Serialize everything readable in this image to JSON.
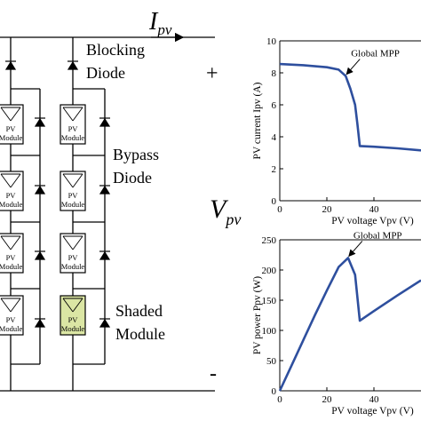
{
  "circuit": {
    "current_symbol": "I",
    "current_sub": "pv",
    "voltage_symbol": "V",
    "voltage_sub": "pv",
    "plus": "+",
    "minus": "-",
    "label_blocking_1": "Blocking",
    "label_blocking_2": "Diode",
    "label_bypass_1": "Bypass",
    "label_bypass_2": "Diode",
    "label_shaded_1": "Shaded",
    "label_shaded_2": "Module",
    "module_line1": "PV",
    "module_line2": "Module",
    "colors": {
      "shaded_fill": "#dbe6a4",
      "wire": "#000000"
    }
  },
  "chart_data": [
    {
      "type": "line",
      "title": "",
      "xlabel": "PV voltage Vpv (V)",
      "ylabel": "PV current Ipv (A)",
      "xlim": [
        0,
        60
      ],
      "ylim": [
        0,
        10
      ],
      "xticks": [
        0,
        20,
        40
      ],
      "yticks": [
        0,
        2,
        4,
        6,
        8,
        10
      ],
      "annotation": {
        "text": "Global MPP",
        "x": 28,
        "y": 7.8
      },
      "color": "#2e4f9e",
      "series": [
        {
          "x": [
            0,
            10,
            20,
            25,
            28,
            30,
            32,
            33,
            34,
            40,
            50,
            60
          ],
          "y": [
            8.55,
            8.48,
            8.35,
            8.2,
            7.8,
            7.0,
            6.0,
            4.8,
            3.42,
            3.38,
            3.28,
            3.15
          ]
        }
      ]
    },
    {
      "type": "line",
      "title": "",
      "xlabel": "PV voltage Vpv (V)",
      "ylabel": "PV power Ppv (W)",
      "xlim": [
        0,
        60
      ],
      "ylim": [
        0,
        250
      ],
      "xticks": [
        0,
        20,
        40
      ],
      "yticks": [
        0,
        50,
        100,
        150,
        200,
        250
      ],
      "annotation": {
        "text": "Global MPP",
        "x": 29,
        "y": 220
      },
      "color": "#2e4f9e",
      "series": [
        {
          "x": [
            0,
            5,
            10,
            15,
            20,
            25,
            29,
            32,
            34,
            40,
            50,
            60
          ],
          "y": [
            0,
            42,
            84,
            126,
            166,
            205,
            220,
            192,
            116,
            132,
            158,
            183
          ]
        }
      ]
    }
  ]
}
